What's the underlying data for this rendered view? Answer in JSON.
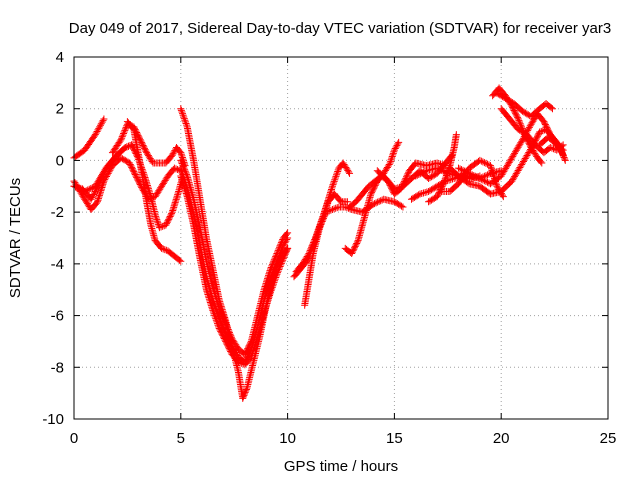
{
  "chart_data": {
    "type": "scatter",
    "title": "Day 049 of 2017, Sidereal Day-to-day VTEC variation (SDTVAR) for receiver yar3",
    "xlabel": "GPS time / hours",
    "ylabel": "SDTVAR / TECUs",
    "xlim": [
      0,
      25
    ],
    "ylim": [
      -10,
      4
    ],
    "xticks": [
      0,
      5,
      10,
      15,
      20,
      25
    ],
    "yticks": [
      -10,
      -8,
      -6,
      -4,
      -2,
      0,
      2,
      4
    ],
    "grid": true,
    "legend": "none",
    "marker": "plus",
    "color": "#ff0000",
    "series": [
      {
        "points": [
          [
            0.0,
            0.1
          ],
          [
            0.5,
            0.4
          ],
          [
            1.0,
            1.0
          ],
          [
            1.4,
            1.6
          ]
        ]
      },
      {
        "points": [
          [
            0.0,
            -1.0
          ],
          [
            0.4,
            -1.1
          ],
          [
            0.8,
            -1.5
          ],
          [
            1.0,
            -1.2
          ],
          [
            1.3,
            -0.6
          ],
          [
            1.6,
            -0.2
          ],
          [
            2.0,
            0.2
          ],
          [
            2.4,
            0.5
          ],
          [
            2.7,
            0.6
          ]
        ]
      },
      {
        "points": [
          [
            0.0,
            -0.8
          ],
          [
            0.5,
            -1.5
          ],
          [
            0.8,
            -1.9
          ],
          [
            1.1,
            -1.6
          ],
          [
            1.4,
            -0.8
          ],
          [
            1.8,
            -0.2
          ],
          [
            2.2,
            0.1
          ],
          [
            2.6,
            -0.1
          ],
          [
            2.9,
            -0.6
          ],
          [
            3.2,
            -1.1
          ],
          [
            3.5,
            -1.5
          ],
          [
            3.8,
            -1.4
          ],
          [
            4.1,
            -1.0
          ],
          [
            4.4,
            -0.6
          ],
          [
            4.7,
            -0.3
          ],
          [
            5.0,
            -0.4
          ]
        ]
      },
      {
        "points": [
          [
            0.0,
            -1.0
          ],
          [
            0.5,
            -1.2
          ],
          [
            1.0,
            -1.0
          ],
          [
            1.5,
            -0.3
          ],
          [
            2.0,
            0.2
          ],
          [
            2.4,
            0.5
          ],
          [
            2.7,
            0.6
          ],
          [
            3.0,
            0.1
          ],
          [
            3.3,
            -0.6
          ],
          [
            3.6,
            -1.4
          ],
          [
            3.8,
            -2.1
          ],
          [
            4.0,
            -2.6
          ],
          [
            4.3,
            -2.5
          ],
          [
            4.6,
            -2.0
          ],
          [
            4.9,
            -1.2
          ],
          [
            5.1,
            -0.6
          ]
        ]
      },
      {
        "points": [
          [
            1.8,
            0.3
          ],
          [
            2.2,
            0.8
          ],
          [
            2.5,
            1.4
          ],
          [
            2.8,
            1.3
          ],
          [
            3.1,
            0.8
          ],
          [
            3.4,
            0.3
          ],
          [
            3.7,
            -0.1
          ],
          [
            4.0,
            -0.1
          ],
          [
            4.3,
            -0.1
          ],
          [
            4.6,
            0.2
          ],
          [
            4.8,
            0.5
          ],
          [
            5.0,
            0.3
          ],
          [
            5.2,
            -0.2
          ]
        ]
      },
      {
        "points": [
          [
            2.5,
            1.5
          ],
          [
            2.8,
            1.2
          ],
          [
            3.0,
            0.3
          ],
          [
            3.2,
            -0.6
          ],
          [
            3.4,
            -1.6
          ],
          [
            3.6,
            -2.5
          ],
          [
            3.8,
            -3.1
          ],
          [
            4.1,
            -3.4
          ],
          [
            4.4,
            -3.5
          ],
          [
            4.7,
            -3.7
          ],
          [
            5.0,
            -3.9
          ]
        ]
      },
      {
        "points": [
          [
            5.0,
            -0.6
          ],
          [
            5.3,
            -1.4
          ],
          [
            5.6,
            -2.5
          ],
          [
            5.9,
            -3.8
          ],
          [
            6.2,
            -5.0
          ],
          [
            6.5,
            -5.8
          ],
          [
            6.8,
            -6.5
          ],
          [
            7.1,
            -7.0
          ],
          [
            7.4,
            -7.5
          ],
          [
            7.7,
            -7.8
          ],
          [
            8.0,
            -7.9
          ],
          [
            8.3,
            -7.6
          ],
          [
            8.6,
            -6.8
          ],
          [
            8.9,
            -5.9
          ],
          [
            9.2,
            -5.1
          ],
          [
            9.5,
            -4.4
          ],
          [
            9.8,
            -3.8
          ],
          [
            10.0,
            -3.4
          ]
        ]
      },
      {
        "points": [
          [
            5.0,
            -0.3
          ],
          [
            5.3,
            -1.1
          ],
          [
            5.6,
            -2.1
          ],
          [
            5.9,
            -3.3
          ],
          [
            6.2,
            -4.5
          ],
          [
            6.5,
            -5.4
          ],
          [
            6.8,
            -6.1
          ],
          [
            7.1,
            -6.7
          ],
          [
            7.4,
            -7.2
          ],
          [
            7.7,
            -7.6
          ],
          [
            8.0,
            -7.8
          ],
          [
            8.3,
            -7.3
          ],
          [
            8.6,
            -6.4
          ],
          [
            8.9,
            -5.4
          ],
          [
            9.2,
            -4.6
          ],
          [
            9.5,
            -3.9
          ],
          [
            9.8,
            -3.3
          ],
          [
            10.0,
            -3.0
          ]
        ]
      },
      {
        "points": [
          [
            5.0,
            0.0
          ],
          [
            5.3,
            -0.6
          ],
          [
            5.6,
            -1.5
          ],
          [
            5.9,
            -2.6
          ],
          [
            6.2,
            -3.9
          ],
          [
            6.5,
            -4.9
          ],
          [
            6.8,
            -5.7
          ],
          [
            7.1,
            -6.3
          ],
          [
            7.4,
            -6.9
          ],
          [
            7.7,
            -7.3
          ],
          [
            8.0,
            -7.5
          ],
          [
            8.3,
            -7.0
          ],
          [
            8.6,
            -6.0
          ],
          [
            8.9,
            -5.0
          ],
          [
            9.2,
            -4.2
          ],
          [
            9.5,
            -3.6
          ],
          [
            9.8,
            -3.0
          ],
          [
            10.0,
            -2.8
          ]
        ]
      },
      {
        "points": [
          [
            5.0,
            2.0
          ],
          [
            5.3,
            1.3
          ],
          [
            5.6,
            0.0
          ],
          [
            5.9,
            -1.5
          ],
          [
            6.2,
            -3.0
          ],
          [
            6.5,
            -4.2
          ],
          [
            6.8,
            -5.4
          ],
          [
            7.1,
            -6.2
          ],
          [
            7.4,
            -7.2
          ],
          [
            7.7,
            -8.2
          ],
          [
            7.9,
            -9.2
          ],
          [
            8.1,
            -8.8
          ],
          [
            8.4,
            -7.8
          ],
          [
            8.7,
            -6.8
          ],
          [
            9.0,
            -5.6
          ],
          [
            9.3,
            -4.6
          ],
          [
            9.6,
            -3.9
          ],
          [
            10.0,
            -3.4
          ]
        ]
      },
      {
        "points": [
          [
            10.3,
            -4.5
          ],
          [
            10.6,
            -4.2
          ],
          [
            10.9,
            -3.9
          ],
          [
            11.2,
            -3.3
          ],
          [
            11.5,
            -2.6
          ],
          [
            11.8,
            -1.8
          ],
          [
            12.1,
            -1.0
          ],
          [
            12.4,
            -0.3
          ],
          [
            12.6,
            -0.1
          ],
          [
            12.9,
            -0.5
          ]
        ]
      },
      {
        "points": [
          [
            10.4,
            -4.3
          ],
          [
            10.7,
            -4.0
          ],
          [
            11.0,
            -3.6
          ],
          [
            11.3,
            -3.0
          ],
          [
            11.6,
            -2.3
          ],
          [
            11.9,
            -1.6
          ],
          [
            12.2,
            -1.3
          ],
          [
            12.5,
            -1.6
          ],
          [
            12.8,
            -1.6
          ]
        ]
      },
      {
        "points": [
          [
            10.8,
            -5.6
          ],
          [
            11.0,
            -4.6
          ],
          [
            11.2,
            -3.6
          ],
          [
            11.5,
            -2.6
          ],
          [
            11.8,
            -2.0
          ],
          [
            12.1,
            -1.9
          ],
          [
            12.4,
            -1.8
          ],
          [
            12.7,
            -1.8
          ],
          [
            13.0,
            -1.9
          ],
          [
            13.5,
            -2.0
          ],
          [
            14.0,
            -1.7
          ],
          [
            14.5,
            -1.5
          ],
          [
            15.0,
            -1.6
          ],
          [
            15.4,
            -1.8
          ]
        ]
      },
      {
        "points": [
          [
            12.7,
            -3.4
          ],
          [
            13.0,
            -3.6
          ],
          [
            13.3,
            -3.1
          ],
          [
            13.6,
            -2.2
          ],
          [
            13.9,
            -1.3
          ],
          [
            14.2,
            -0.8
          ],
          [
            14.5,
            -0.5
          ],
          [
            14.8,
            -0.1
          ],
          [
            15.0,
            0.4
          ],
          [
            15.2,
            0.7
          ]
        ]
      },
      {
        "points": [
          [
            12.9,
            -1.8
          ],
          [
            13.2,
            -1.6
          ],
          [
            13.5,
            -1.3
          ],
          [
            13.8,
            -1.0
          ],
          [
            14.1,
            -0.8
          ],
          [
            14.4,
            -0.6
          ],
          [
            14.7,
            -0.8
          ],
          [
            15.0,
            -1.3
          ],
          [
            15.3,
            -1.1
          ],
          [
            15.7,
            -0.4
          ],
          [
            16.0,
            -0.1
          ],
          [
            16.5,
            -0.2
          ],
          [
            17.0,
            -0.1
          ],
          [
            17.4,
            -0.2
          ]
        ]
      },
      {
        "points": [
          [
            14.2,
            -0.4
          ],
          [
            14.6,
            -0.7
          ],
          [
            15.0,
            -1.1
          ],
          [
            15.4,
            -1.0
          ],
          [
            15.8,
            -0.7
          ],
          [
            16.2,
            -0.4
          ],
          [
            16.6,
            -0.7
          ],
          [
            17.0,
            -0.5
          ],
          [
            17.4,
            -0.1
          ],
          [
            17.7,
            0.2
          ]
        ]
      },
      {
        "points": [
          [
            15.8,
            -1.5
          ],
          [
            16.2,
            -1.3
          ],
          [
            16.6,
            -1.2
          ],
          [
            17.0,
            -1.0
          ],
          [
            17.4,
            -0.8
          ],
          [
            17.8,
            -0.7
          ],
          [
            18.2,
            -0.6
          ],
          [
            18.6,
            -0.7
          ],
          [
            19.0,
            -0.6
          ]
        ]
      },
      {
        "points": [
          [
            16.6,
            -1.6
          ],
          [
            17.0,
            -1.4
          ],
          [
            17.3,
            -0.9
          ],
          [
            17.6,
            -0.2
          ],
          [
            17.8,
            0.5
          ],
          [
            17.9,
            1.0
          ]
        ]
      },
      {
        "points": [
          [
            16.0,
            -0.6
          ],
          [
            16.5,
            -0.4
          ],
          [
            17.0,
            -0.3
          ],
          [
            17.5,
            -0.5
          ],
          [
            18.0,
            -0.6
          ],
          [
            18.5,
            -0.6
          ],
          [
            19.0,
            -0.7
          ],
          [
            19.5,
            -0.5
          ],
          [
            20.0,
            -0.4
          ]
        ]
      },
      {
        "points": [
          [
            17.2,
            -1.2
          ],
          [
            17.6,
            -1.2
          ],
          [
            18.0,
            -0.9
          ],
          [
            18.5,
            -0.3
          ],
          [
            19.0,
            0.0
          ],
          [
            19.5,
            -0.2
          ],
          [
            19.8,
            -1.0
          ],
          [
            20.1,
            -1.4
          ]
        ]
      },
      {
        "points": [
          [
            17.6,
            -0.3
          ],
          [
            18.0,
            -0.6
          ],
          [
            18.5,
            -0.9
          ],
          [
            19.0,
            -1.0
          ],
          [
            19.5,
            -1.3
          ],
          [
            20.0,
            -1.2
          ],
          [
            20.5,
            -0.8
          ],
          [
            21.0,
            -0.1
          ],
          [
            21.5,
            0.6
          ],
          [
            21.8,
            1.1
          ],
          [
            22.1,
            1.2
          ],
          [
            22.4,
            0.9
          ],
          [
            22.7,
            0.6
          ],
          [
            22.9,
            0.2
          ]
        ]
      },
      {
        "points": [
          [
            18.0,
            -0.3
          ],
          [
            18.5,
            -0.5
          ],
          [
            19.0,
            -0.7
          ],
          [
            19.5,
            -0.9
          ],
          [
            20.0,
            -0.6
          ],
          [
            20.5,
            0.1
          ],
          [
            21.0,
            0.8
          ],
          [
            21.4,
            1.4
          ],
          [
            21.7,
            1.8
          ],
          [
            22.0,
            1.5
          ],
          [
            22.3,
            1.0
          ],
          [
            22.6,
            0.6
          ],
          [
            22.9,
            0.4
          ]
        ]
      },
      {
        "points": [
          [
            19.6,
            2.5
          ],
          [
            19.9,
            2.8
          ],
          [
            20.2,
            2.5
          ],
          [
            20.5,
            2.1
          ],
          [
            20.8,
            1.6
          ],
          [
            21.1,
            1.0
          ],
          [
            21.4,
            0.5
          ],
          [
            21.7,
            0.1
          ],
          [
            21.9,
            -0.1
          ]
        ]
      },
      {
        "points": [
          [
            19.8,
            2.6
          ],
          [
            20.2,
            2.4
          ],
          [
            20.6,
            2.2
          ],
          [
            21.0,
            1.9
          ],
          [
            21.4,
            1.7
          ],
          [
            21.8,
            2.0
          ],
          [
            22.1,
            2.2
          ],
          [
            22.4,
            2.0
          ]
        ]
      },
      {
        "points": [
          [
            20.0,
            2.0
          ],
          [
            20.4,
            1.6
          ],
          [
            20.8,
            1.2
          ],
          [
            21.2,
            1.0
          ],
          [
            21.6,
            0.6
          ],
          [
            22.0,
            0.3
          ],
          [
            22.3,
            0.5
          ],
          [
            22.6,
            0.4
          ],
          [
            22.9,
            0.6
          ]
        ]
      },
      {
        "points": [
          [
            21.8,
            0.6
          ],
          [
            22.2,
            0.9
          ],
          [
            22.5,
            0.7
          ],
          [
            22.8,
            0.4
          ],
          [
            23.0,
            0.0
          ]
        ]
      }
    ]
  }
}
